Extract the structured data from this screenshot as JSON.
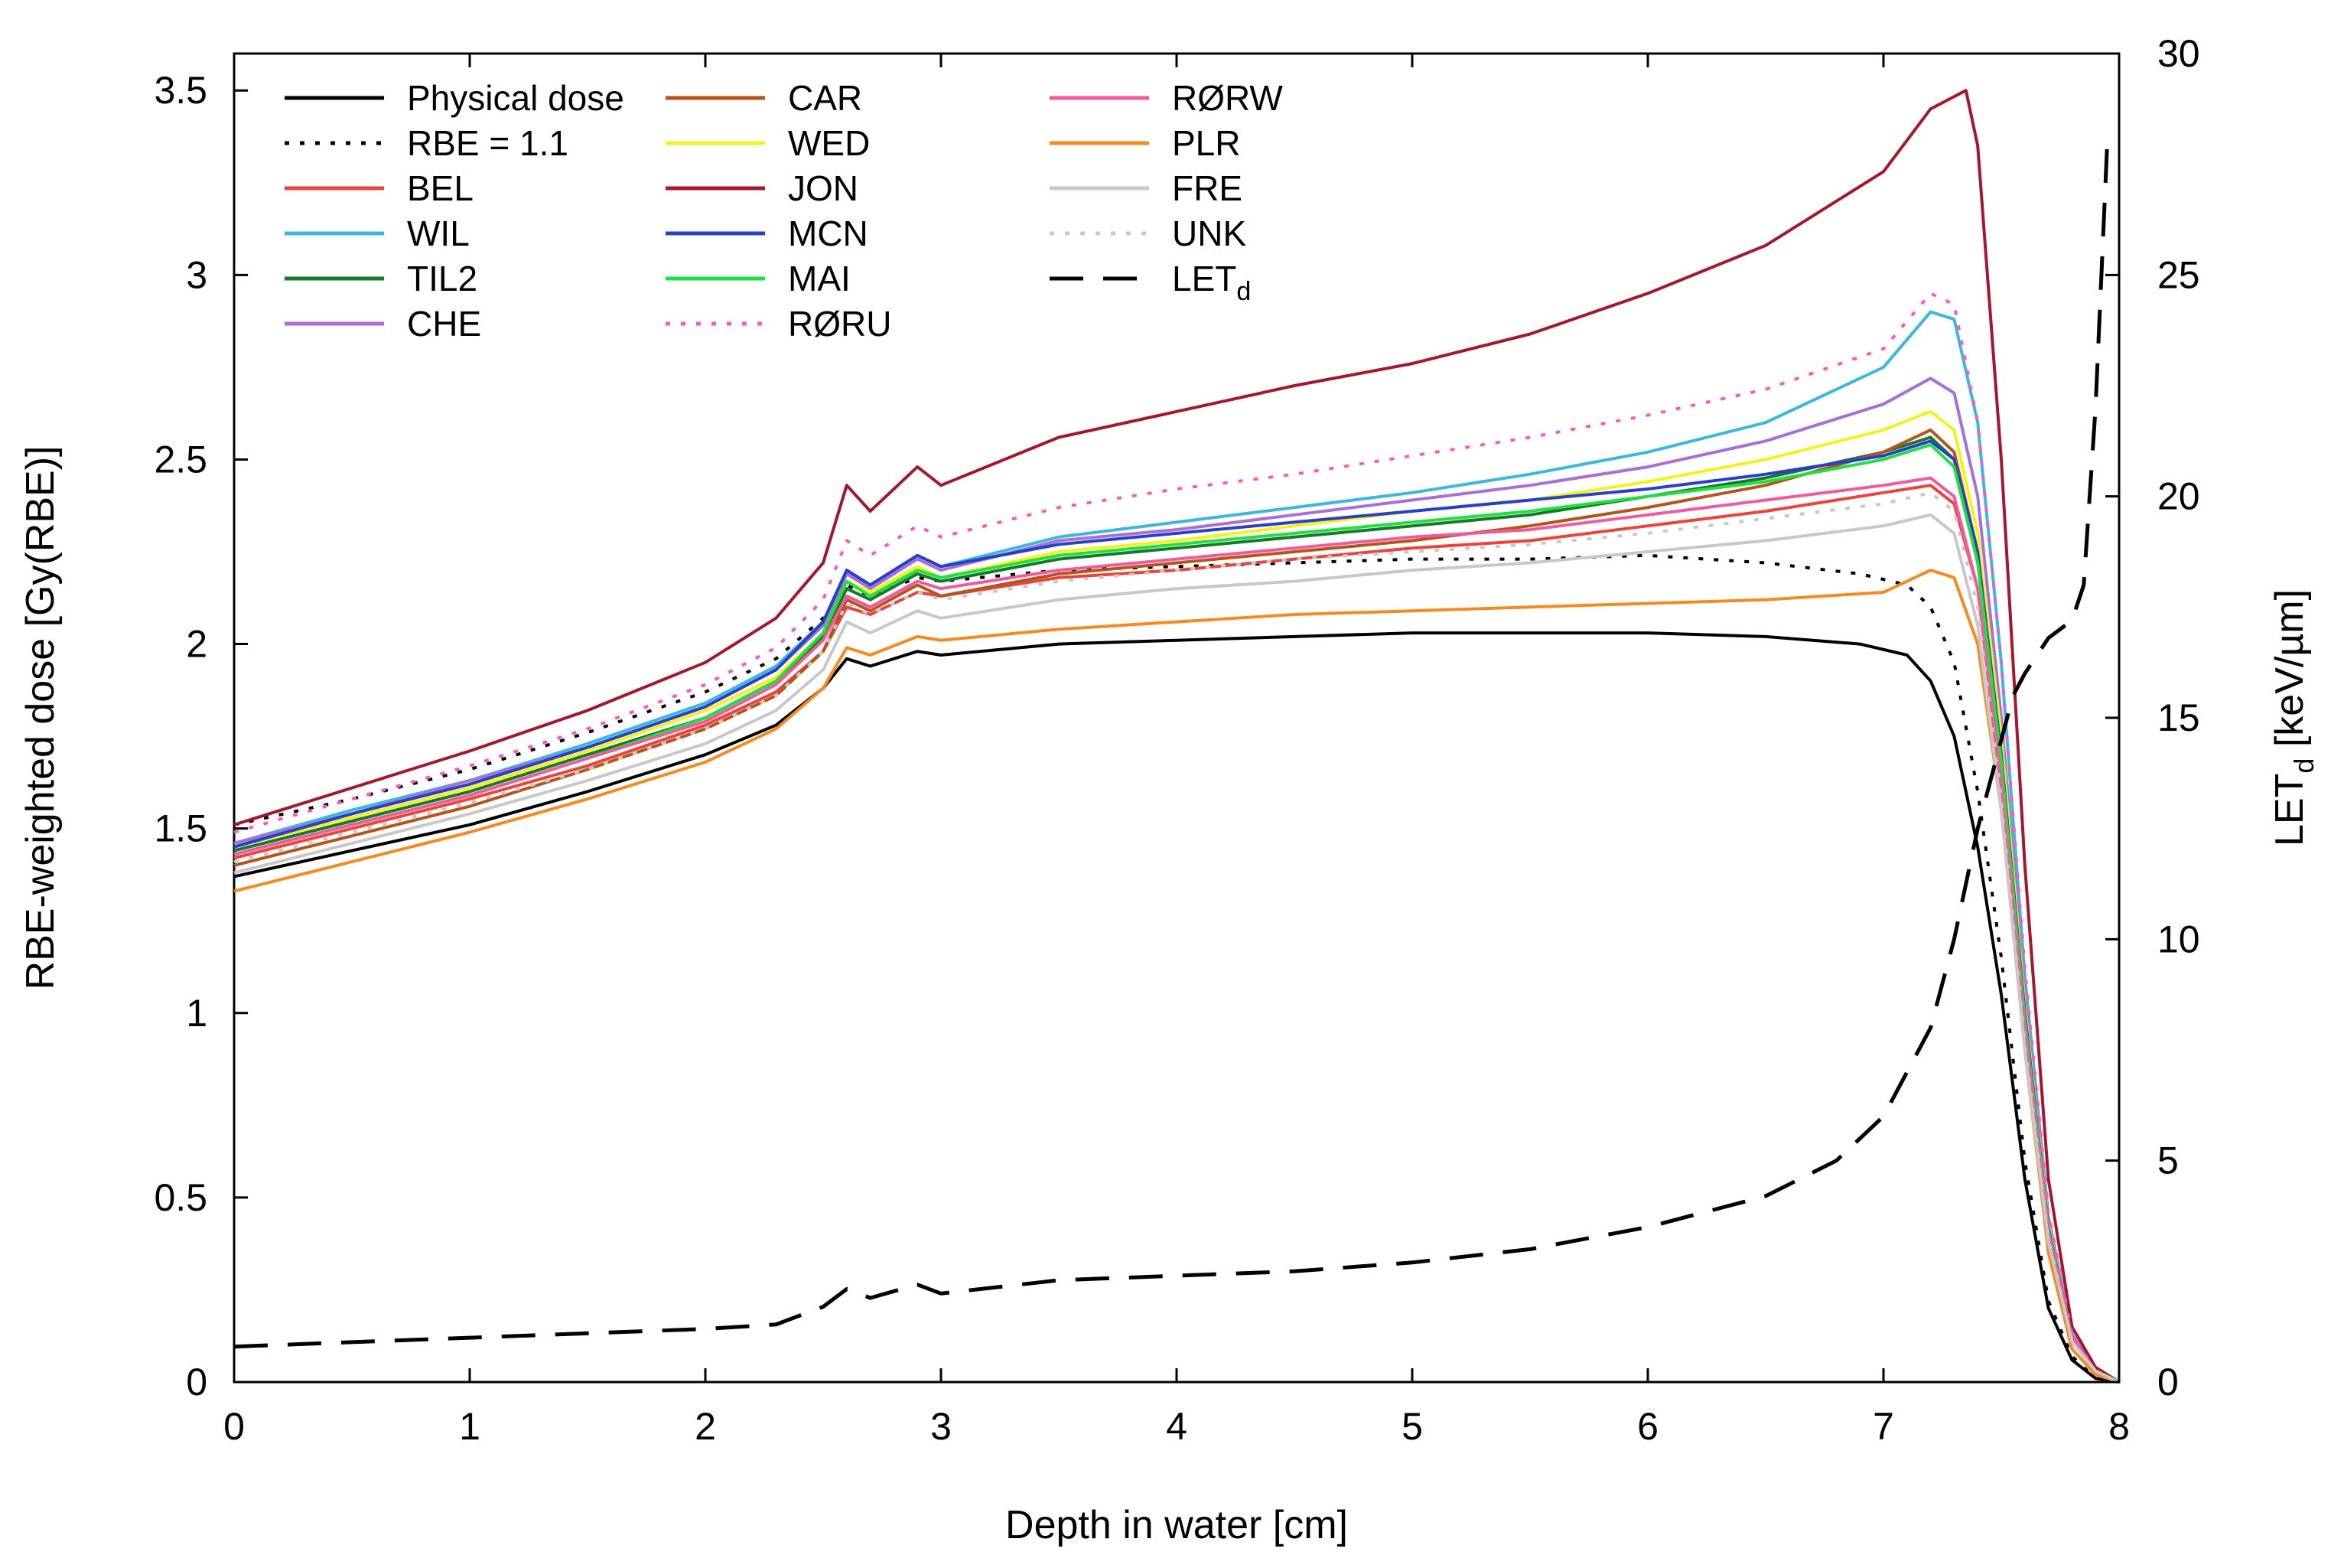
{
  "chart_data": {
    "type": "line",
    "title": "",
    "xlabel": "Depth in water [cm]",
    "ylabel": "RBE-weighted dose [Gy(RBE)]",
    "y2label": {
      "main": "LET",
      "sub": "d",
      "rest": " [keV/µm]"
    },
    "xlim": [
      0,
      8
    ],
    "ylim": [
      0,
      3.6
    ],
    "y2lim": [
      0,
      30
    ],
    "xticks": [
      "0",
      "1",
      "2",
      "3",
      "4",
      "5",
      "6",
      "7",
      "8"
    ],
    "yticks": [
      "0",
      "0.5",
      "1",
      "1.5",
      "2",
      "2.5",
      "3",
      "3.5"
    ],
    "y2ticks": [
      "0",
      "5",
      "10",
      "15",
      "20",
      "25",
      "30"
    ],
    "grid": false,
    "legend_position": "top-left",
    "series": [
      {
        "name": "Physical dose",
        "color": "#000000",
        "style": "solid",
        "axis": "left",
        "x": [
          0,
          0.5,
          1,
          1.5,
          2,
          2.3,
          2.5,
          2.6,
          2.7,
          2.9,
          3,
          3.5,
          4,
          4.5,
          5,
          5.5,
          6,
          6.5,
          6.9,
          7.1,
          7.2,
          7.3,
          7.4,
          7.5,
          7.6,
          7.7,
          7.8,
          7.9,
          8
        ],
        "y": [
          1.37,
          1.44,
          1.51,
          1.6,
          1.7,
          1.78,
          1.88,
          1.96,
          1.94,
          1.98,
          1.97,
          2,
          2.01,
          2.02,
          2.03,
          2.03,
          2.03,
          2.02,
          2.0,
          1.97,
          1.9,
          1.75,
          1.45,
          1.05,
          0.55,
          0.2,
          0.06,
          0.01,
          0
        ]
      },
      {
        "name": "RBE = 1.1",
        "color": "#000000",
        "style": "dotted",
        "axis": "left",
        "x": [
          0,
          0.5,
          1,
          1.5,
          2,
          2.3,
          2.5,
          2.6,
          2.7,
          2.9,
          3,
          3.5,
          4,
          4.5,
          5,
          5.5,
          6,
          6.5,
          6.9,
          7.1,
          7.2,
          7.3,
          7.4,
          7.5,
          7.6,
          7.7,
          7.8,
          7.9,
          8
        ],
        "y": [
          1.51,
          1.58,
          1.66,
          1.76,
          1.87,
          1.96,
          2.07,
          2.16,
          2.13,
          2.18,
          2.17,
          2.2,
          2.21,
          2.22,
          2.23,
          2.23,
          2.24,
          2.22,
          2.19,
          2.16,
          2.1,
          1.95,
          1.6,
          1.15,
          0.6,
          0.22,
          0.07,
          0.01,
          0
        ]
      },
      {
        "name": "BEL",
        "color": "#e8453c",
        "style": "solid",
        "axis": "left",
        "x": [
          0,
          0.5,
          1,
          1.5,
          2,
          2.3,
          2.5,
          2.6,
          2.7,
          2.9,
          3,
          3.5,
          4,
          4.5,
          5,
          5.5,
          6,
          6.5,
          7,
          7.2,
          7.3,
          7.4,
          7.5,
          7.6,
          7.7,
          7.8,
          7.9,
          8
        ],
        "y": [
          1.42,
          1.5,
          1.58,
          1.67,
          1.78,
          1.87,
          1.98,
          2.1,
          2.08,
          2.14,
          2.13,
          2.18,
          2.2,
          2.23,
          2.26,
          2.28,
          2.32,
          2.36,
          2.41,
          2.43,
          2.38,
          2.15,
          1.6,
          0.95,
          0.4,
          0.12,
          0.03,
          0
        ]
      },
      {
        "name": "WIL",
        "color": "#3bb8dc",
        "style": "solid",
        "axis": "left",
        "x": [
          0,
          0.5,
          1,
          1.5,
          2,
          2.3,
          2.5,
          2.6,
          2.7,
          2.9,
          3,
          3.5,
          4,
          4.5,
          5,
          5.5,
          6,
          6.5,
          7,
          7.2,
          7.3,
          7.4,
          7.5,
          7.6,
          7.7,
          7.8,
          7.9,
          8
        ],
        "y": [
          1.46,
          1.55,
          1.63,
          1.73,
          1.84,
          1.94,
          2.06,
          2.2,
          2.16,
          2.24,
          2.21,
          2.29,
          2.33,
          2.37,
          2.41,
          2.46,
          2.52,
          2.6,
          2.75,
          2.9,
          2.88,
          2.6,
          1.95,
          1.1,
          0.45,
          0.13,
          0.03,
          0
        ]
      },
      {
        "name": "TIL2",
        "color": "#177a2a",
        "style": "solid",
        "axis": "left",
        "x": [
          0,
          0.5,
          1,
          1.5,
          2,
          2.3,
          2.5,
          2.6,
          2.7,
          2.9,
          3,
          3.5,
          4,
          4.5,
          5,
          5.5,
          6,
          6.5,
          7,
          7.2,
          7.3,
          7.4,
          7.5,
          7.6,
          7.7,
          7.8,
          7.9,
          8
        ],
        "y": [
          1.44,
          1.52,
          1.6,
          1.7,
          1.8,
          1.9,
          2.02,
          2.15,
          2.12,
          2.19,
          2.17,
          2.23,
          2.26,
          2.29,
          2.32,
          2.35,
          2.4,
          2.45,
          2.52,
          2.56,
          2.5,
          2.25,
          1.7,
          1.0,
          0.42,
          0.12,
          0.03,
          0
        ]
      },
      {
        "name": "CHE",
        "color": "#a86fd6",
        "style": "solid",
        "axis": "left",
        "x": [
          0,
          0.5,
          1,
          1.5,
          2,
          2.3,
          2.5,
          2.6,
          2.7,
          2.9,
          3,
          3.5,
          4,
          4.5,
          5,
          5.5,
          6,
          6.5,
          7,
          7.2,
          7.3,
          7.4,
          7.5,
          7.6,
          7.7,
          7.8,
          7.9,
          8
        ],
        "y": [
          1.46,
          1.54,
          1.63,
          1.72,
          1.83,
          1.93,
          2.05,
          2.19,
          2.15,
          2.23,
          2.2,
          2.28,
          2.31,
          2.35,
          2.39,
          2.43,
          2.48,
          2.55,
          2.65,
          2.72,
          2.68,
          2.4,
          1.8,
          1.05,
          0.44,
          0.13,
          0.03,
          0
        ]
      },
      {
        "name": "CAR",
        "color": "#b5541d",
        "style": "solid",
        "axis": "left",
        "x": [
          0,
          0.5,
          1,
          1.5,
          2,
          2.3,
          2.5,
          2.6,
          2.7,
          2.9,
          3,
          3.5,
          4,
          4.5,
          5,
          5.5,
          6,
          6.5,
          7,
          7.2,
          7.3,
          7.4,
          7.5,
          7.6,
          7.7,
          7.8,
          7.9,
          8
        ],
        "y": [
          1.4,
          1.48,
          1.56,
          1.66,
          1.77,
          1.86,
          1.98,
          2.12,
          2.09,
          2.16,
          2.13,
          2.19,
          2.22,
          2.25,
          2.28,
          2.32,
          2.37,
          2.43,
          2.52,
          2.58,
          2.52,
          2.25,
          1.7,
          1.0,
          0.42,
          0.12,
          0.03,
          0
        ]
      },
      {
        "name": "WED",
        "color": "#f2f21c",
        "style": "solid",
        "axis": "left",
        "x": [
          0,
          0.5,
          1,
          1.5,
          2,
          2.3,
          2.5,
          2.6,
          2.7,
          2.9,
          3,
          3.5,
          4,
          4.5,
          5,
          5.5,
          6,
          6.5,
          7,
          7.2,
          7.3,
          7.4,
          7.5,
          7.6,
          7.7,
          7.8,
          7.9,
          8
        ],
        "y": [
          1.45,
          1.53,
          1.61,
          1.71,
          1.82,
          1.91,
          2.03,
          2.17,
          2.14,
          2.21,
          2.18,
          2.25,
          2.28,
          2.32,
          2.36,
          2.39,
          2.44,
          2.5,
          2.58,
          2.63,
          2.58,
          2.3,
          1.75,
          1.02,
          0.43,
          0.12,
          0.03,
          0
        ]
      },
      {
        "name": "JON",
        "color": "#a3182c",
        "style": "solid",
        "axis": "left",
        "x": [
          0,
          0.5,
          1,
          1.5,
          2,
          2.3,
          2.5,
          2.6,
          2.7,
          2.9,
          3,
          3.5,
          4,
          4.5,
          5,
          5.5,
          6,
          6.5,
          7,
          7.2,
          7.35,
          7.4,
          7.5,
          7.6,
          7.7,
          7.8,
          7.9,
          8
        ],
        "y": [
          1.51,
          1.61,
          1.71,
          1.82,
          1.95,
          2.07,
          2.22,
          2.43,
          2.36,
          2.48,
          2.43,
          2.56,
          2.63,
          2.7,
          2.76,
          2.84,
          2.95,
          3.08,
          3.28,
          3.45,
          3.5,
          3.35,
          2.5,
          1.4,
          0.55,
          0.15,
          0.04,
          0
        ]
      },
      {
        "name": "MCN",
        "color": "#2a3fc8",
        "style": "solid",
        "axis": "left",
        "x": [
          0,
          0.5,
          1,
          1.5,
          2,
          2.3,
          2.5,
          2.6,
          2.7,
          2.9,
          3,
          3.5,
          4,
          4.5,
          5,
          5.5,
          6,
          6.5,
          7,
          7.2,
          7.3,
          7.4,
          7.5,
          7.6,
          7.7,
          7.8,
          7.9,
          8
        ],
        "y": [
          1.45,
          1.54,
          1.62,
          1.72,
          1.83,
          1.93,
          2.06,
          2.2,
          2.16,
          2.24,
          2.21,
          2.27,
          2.3,
          2.33,
          2.36,
          2.39,
          2.42,
          2.46,
          2.51,
          2.55,
          2.5,
          2.25,
          1.7,
          1.0,
          0.42,
          0.12,
          0.03,
          0
        ]
      },
      {
        "name": "MAI",
        "color": "#1fe040",
        "style": "solid",
        "axis": "left",
        "x": [
          0,
          0.5,
          1,
          1.5,
          2,
          2.3,
          2.5,
          2.6,
          2.7,
          2.9,
          3,
          3.5,
          4,
          4.5,
          5,
          5.5,
          6,
          6.5,
          7,
          7.2,
          7.3,
          7.4,
          7.5,
          7.6,
          7.7,
          7.8,
          7.9,
          8
        ],
        "y": [
          1.43,
          1.51,
          1.59,
          1.69,
          1.8,
          1.9,
          2.03,
          2.17,
          2.13,
          2.2,
          2.18,
          2.24,
          2.27,
          2.3,
          2.33,
          2.36,
          2.4,
          2.44,
          2.5,
          2.54,
          2.48,
          2.22,
          1.68,
          0.98,
          0.41,
          0.12,
          0.03,
          0
        ]
      },
      {
        "name": "RØRU",
        "color": "#f25cc4",
        "style": "dotted",
        "axis": "left",
        "x": [
          0,
          0.5,
          1,
          1.5,
          2,
          2.3,
          2.5,
          2.6,
          2.7,
          2.9,
          3,
          3.5,
          4,
          4.5,
          5,
          5.5,
          6,
          6.5,
          7,
          7.2,
          7.3,
          7.4,
          7.5,
          7.6,
          7.7,
          7.8,
          7.9,
          8
        ],
        "y": [
          1.49,
          1.58,
          1.67,
          1.77,
          1.89,
          1.99,
          2.12,
          2.28,
          2.24,
          2.32,
          2.29,
          2.37,
          2.42,
          2.46,
          2.51,
          2.56,
          2.62,
          2.69,
          2.8,
          2.95,
          2.92,
          2.6,
          1.95,
          1.12,
          0.46,
          0.13,
          0.03,
          0
        ]
      },
      {
        "name": "RØRW",
        "color": "#f25a9e",
        "style": "solid",
        "axis": "left",
        "x": [
          0,
          0.5,
          1,
          1.5,
          2,
          2.3,
          2.5,
          2.6,
          2.7,
          2.9,
          3,
          3.5,
          4,
          4.5,
          5,
          5.5,
          6,
          6.5,
          7,
          7.2,
          7.3,
          7.4,
          7.5,
          7.6,
          7.7,
          7.8,
          7.9,
          8
        ],
        "y": [
          1.43,
          1.51,
          1.59,
          1.69,
          1.79,
          1.89,
          2.01,
          2.13,
          2.1,
          2.17,
          2.15,
          2.2,
          2.23,
          2.26,
          2.29,
          2.31,
          2.35,
          2.39,
          2.43,
          2.45,
          2.4,
          2.15,
          1.62,
          0.95,
          0.4,
          0.12,
          0.03,
          0
        ]
      },
      {
        "name": "PLR",
        "color": "#f58a22",
        "style": "solid",
        "axis": "left",
        "x": [
          0,
          0.5,
          1,
          1.5,
          2,
          2.3,
          2.5,
          2.6,
          2.7,
          2.9,
          3,
          3.5,
          4,
          4.5,
          5,
          5.5,
          6,
          6.5,
          7,
          7.1,
          7.2,
          7.3,
          7.4,
          7.5,
          7.6,
          7.7,
          7.8,
          7.9,
          8
        ],
        "y": [
          1.33,
          1.41,
          1.49,
          1.58,
          1.68,
          1.77,
          1.88,
          1.99,
          1.97,
          2.02,
          2.01,
          2.04,
          2.06,
          2.08,
          2.09,
          2.1,
          2.11,
          2.12,
          2.14,
          2.17,
          2.2,
          2.18,
          2.0,
          1.55,
          0.9,
          0.35,
          0.09,
          0.02,
          0
        ]
      },
      {
        "name": "FRE",
        "color": "#c8c8c8",
        "style": "solid",
        "axis": "left",
        "x": [
          0,
          0.5,
          1,
          1.5,
          2,
          2.3,
          2.5,
          2.6,
          2.7,
          2.9,
          3,
          3.5,
          4,
          4.5,
          5,
          5.5,
          6,
          6.5,
          7,
          7.2,
          7.3,
          7.4,
          7.5,
          7.6,
          7.7,
          7.8,
          7.9,
          8
        ],
        "y": [
          1.38,
          1.46,
          1.54,
          1.63,
          1.73,
          1.82,
          1.93,
          2.06,
          2.03,
          2.09,
          2.07,
          2.12,
          2.15,
          2.17,
          2.2,
          2.22,
          2.25,
          2.28,
          2.32,
          2.35,
          2.3,
          2.05,
          1.55,
          0.9,
          0.38,
          0.11,
          0.03,
          0
        ]
      },
      {
        "name": "UNK",
        "color": "#c8c8c8",
        "style": "dotted",
        "axis": "left",
        "x": [
          0,
          0.5,
          1,
          1.5,
          2,
          2.3,
          2.5,
          2.6,
          2.7,
          2.9,
          3,
          3.5,
          4,
          4.5,
          5,
          5.5,
          6,
          6.5,
          7,
          7.2,
          7.3,
          7.4,
          7.5,
          7.6,
          7.7,
          7.8,
          7.9,
          8
        ],
        "y": [
          1.41,
          1.49,
          1.57,
          1.66,
          1.77,
          1.86,
          1.98,
          2.11,
          2.08,
          2.14,
          2.12,
          2.17,
          2.2,
          2.23,
          2.25,
          2.27,
          2.3,
          2.34,
          2.38,
          2.41,
          2.36,
          2.1,
          1.58,
          0.92,
          0.39,
          0.11,
          0.03,
          0
        ]
      },
      {
        "name": "LET",
        "name_sub": "d",
        "color": "#000000",
        "style": "dashed",
        "axis": "right",
        "x": [
          0,
          0.5,
          1,
          1.5,
          2,
          2.3,
          2.5,
          2.6,
          2.7,
          2.9,
          3,
          3.5,
          4,
          4.5,
          5,
          5.5,
          6,
          6.5,
          6.8,
          7,
          7.2,
          7.3,
          7.4,
          7.5,
          7.55,
          7.6,
          7.7,
          7.8,
          7.85,
          7.9,
          7.95
        ],
        "y": [
          0.8,
          0.9,
          1.0,
          1.1,
          1.2,
          1.3,
          1.7,
          2.1,
          1.9,
          2.2,
          2.0,
          2.3,
          2.4,
          2.5,
          2.7,
          3.0,
          3.5,
          4.2,
          5.0,
          6.0,
          8.0,
          10.0,
          12.5,
          14.5,
          15.5,
          16.0,
          16.8,
          17.2,
          18.0,
          22.0,
          28.0
        ]
      }
    ]
  }
}
